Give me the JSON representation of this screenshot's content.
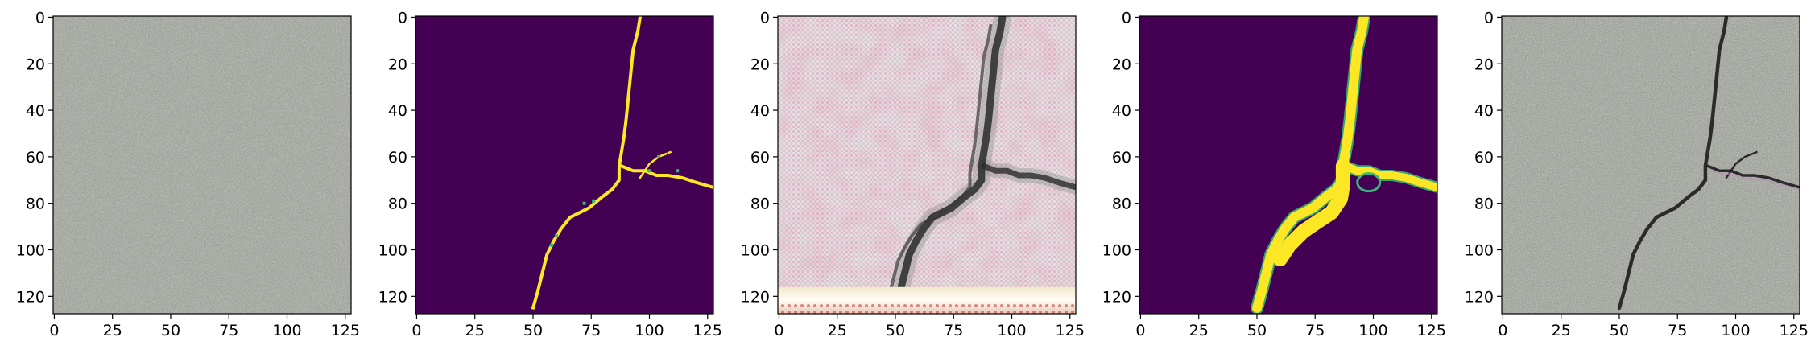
{
  "figure": {
    "panels": [
      {
        "kind": "photo",
        "description_key": "concrete-surface"
      },
      {
        "kind": "mask"
      },
      {
        "kind": "artifact"
      },
      {
        "kind": "mask-smooth"
      },
      {
        "kind": "photo-crack"
      }
    ],
    "x_ticks": [
      "0",
      "25",
      "50",
      "75",
      "100",
      "125"
    ],
    "y_ticks": [
      "0",
      "20",
      "40",
      "60",
      "80",
      "100",
      "120"
    ],
    "x_tick_values": [
      0,
      25,
      50,
      75,
      100,
      125
    ],
    "y_tick_values": [
      0,
      20,
      40,
      60,
      80,
      100,
      120
    ],
    "image_extent": [
      -0.5,
      127.5
    ],
    "colors": {
      "viridis_bg": "#440154",
      "viridis_yellow": "#fde725",
      "viridis_teal": "#35b779",
      "concrete": "#9c9f98",
      "crack_dark": "#1e1c1e"
    }
  }
}
